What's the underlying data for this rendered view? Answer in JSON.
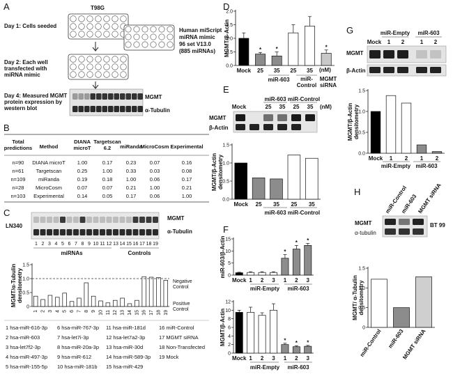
{
  "panels": {
    "A": {
      "label": "A",
      "cell_line": "T98G",
      "day1": "Day 1: Cells seeded",
      "day2": [
        "Day 2: Each well",
        "transfected with",
        "miRNA mimic"
      ],
      "day4": [
        "Day 4: Measured MGMT",
        "protein  expression by",
        "western blot"
      ],
      "library": [
        "Human miScript",
        "miRNA mimic",
        "96 set V13.0",
        "(885 miRNAs)"
      ],
      "blot_labels": [
        "MGMT",
        "α-Tubulin"
      ]
    },
    "B": {
      "label": "B",
      "headers": [
        "Total predictions",
        "Method",
        "DIANA microT",
        "Targetscan 6.2",
        "miRanda",
        "MicroCosm",
        "Experimental"
      ],
      "rows": [
        [
          "n=90",
          "DIANA microT",
          "1.00",
          "0.17",
          "0.23",
          "0.07",
          "0.16"
        ],
        [
          "n=61",
          "Targetscan",
          "0.25",
          "1.00",
          "0.33",
          "0.03",
          "0.08"
        ],
        [
          "n=109",
          "miRanda",
          "0.19",
          "0.18",
          "1.00",
          "0.06",
          "0.17"
        ],
        [
          "n=28",
          "MicroCosm",
          "0.07",
          "0.07",
          "0.21",
          "1.00",
          "0.21"
        ],
        [
          "n=103",
          "Experimental",
          "0.14",
          "0.05",
          "0.17",
          "0.06",
          "1.00"
        ]
      ]
    },
    "C": {
      "label": "C",
      "cell_line": "LN340",
      "blot_labels": [
        "MGMT",
        "α-Tubulin"
      ],
      "lane_numbers": [
        "1",
        "2",
        "3",
        "4",
        "5",
        "6",
        "7",
        "8",
        "9",
        "10",
        "11",
        "12",
        "13",
        "14",
        "15",
        "16",
        "17",
        "18",
        "19"
      ],
      "group_mirnas": "miRNAs",
      "group_controls": "Controls",
      "neg_label": "Negative Control",
      "pos_label": "Positive Control",
      "legend": [
        "1 hsa-miR-616-3p",
        "2 hsa-miR-603",
        "3 hsa-let7f2-3p",
        "4 hsa-miR-497-3p",
        "5 hsa-miR-155-5p",
        "6 hsa-miR-767-3p",
        "7 hsa-let7i-3p",
        "8 hsa-miR-20a-3p",
        "9 hsa-miR-612",
        "10 hsa-miR-181b",
        "11 hsa-miR-181d",
        "12 hsa-let7a2-3p",
        "13 hsa-miR-30d",
        "14 hsa-miR-589-3p",
        "15 hsa-miR-429",
        "16 miR-Control",
        "17 MGMT siRNA",
        "18 Non-Transfected",
        "19 Mock"
      ]
    },
    "D": {
      "label": "D",
      "mock": "Mock",
      "dose_unit": "(nM)",
      "groups": [
        "miR-603",
        "miR-Control",
        "MGMT siRNA"
      ]
    },
    "E": {
      "label": "E",
      "blot_labels": [
        "MGMT",
        "β-Actin"
      ],
      "top_labels": [
        "Mock",
        "25",
        "35",
        "25",
        "35"
      ],
      "dose_unit": "(nM)",
      "groups": [
        "miR-603",
        "miR-Control"
      ]
    },
    "F": {
      "label": "F",
      "groups": [
        "miR-Empty",
        "miR-603"
      ]
    },
    "G": {
      "label": "G",
      "blot_groups": [
        "miR-Empty",
        "miR-603"
      ],
      "blot_labels": [
        "MGMT",
        "β-Actin"
      ],
      "mock": "Mock",
      "lane_nums": [
        "1",
        "2",
        "1",
        "2"
      ],
      "groups": [
        "miR-Empty",
        "miR-603"
      ]
    },
    "H": {
      "label": "H",
      "col_labels": [
        "miR-Control",
        "miR-603",
        "MGMT siRNA"
      ],
      "blot_labels": [
        "MGMT",
        "α-tubulin"
      ],
      "cell_line": "BT 99"
    }
  },
  "chart_data": [
    {
      "id": "C",
      "type": "bar",
      "categories": [
        "1",
        "2",
        "3",
        "4",
        "5",
        "6",
        "7",
        "8",
        "9",
        "10",
        "11",
        "12",
        "13",
        "14",
        "15",
        "16",
        "17",
        "18",
        "19"
      ],
      "values": [
        0.37,
        0.25,
        0.4,
        0.33,
        0.48,
        0.18,
        0.3,
        0.85,
        0.37,
        0.2,
        0.13,
        0.22,
        0.3,
        0.1,
        0.22,
        1.07,
        1.05,
        1.04,
        0.94
      ],
      "ylabel": "MGMT/α-Tubulin densitometry",
      "ylim": [
        0,
        1.5
      ],
      "yticks": [
        0,
        0.5,
        1.0,
        1.5
      ],
      "ytick_labels": [
        "0",
        "0.5",
        "1.0",
        "1.5"
      ],
      "reference_line": 1.0
    },
    {
      "id": "D",
      "type": "bar",
      "categories": [
        "Mock",
        "25",
        "35",
        "25",
        "35",
        "MGMT siRNA"
      ],
      "values": [
        1.0,
        0.42,
        0.35,
        1.2,
        1.45,
        0.45
      ],
      "errors": [
        0.2,
        0.06,
        0.15,
        0.3,
        0.35,
        0.12
      ],
      "significant": [
        false,
        true,
        true,
        false,
        false,
        true
      ],
      "colors": [
        "#000000",
        "#8c8c8c",
        "#8c8c8c",
        "#ffffff",
        "#ffffff",
        "#c8c8c8"
      ],
      "ylabel": "MGMT/β-Actin",
      "ylim": [
        0,
        2.0
      ],
      "yticks": [
        0,
        0.5,
        1.0,
        1.5,
        2.0
      ],
      "ytick_labels": [
        "0.0",
        "0.5",
        "1.0",
        "1.5",
        "2.0"
      ]
    },
    {
      "id": "E",
      "type": "bar",
      "categories": [
        "Mock",
        "25",
        "35",
        "25",
        "35"
      ],
      "values": [
        1.0,
        0.59,
        0.56,
        1.22,
        1.13
      ],
      "colors": [
        "#000000",
        "#8c8c8c",
        "#8c8c8c",
        "#ffffff",
        "#ffffff"
      ],
      "ylabel": "MGMT/β-Actin densitometry",
      "ylim": [
        0,
        1.5
      ],
      "yticks": [
        0,
        0.5,
        1.0,
        1.5
      ],
      "ytick_labels": [
        "0.0",
        "0.5",
        "1.0",
        "1.5"
      ]
    },
    {
      "id": "F1",
      "type": "bar",
      "categories": [
        "Mock",
        "1",
        "2",
        "3",
        "1",
        "2",
        "3"
      ],
      "values": [
        1.0,
        1.1,
        1.1,
        1.1,
        7.0,
        10.8,
        12.3
      ],
      "errors": [
        0.2,
        0.3,
        0.3,
        0.3,
        1.5,
        1.5,
        0.8
      ],
      "significant": [
        false,
        false,
        false,
        false,
        true,
        true,
        true
      ],
      "colors": [
        "#000000",
        "#ffffff",
        "#ffffff",
        "#ffffff",
        "#8c8c8c",
        "#8c8c8c",
        "#8c8c8c"
      ],
      "ylabel": "miR-603/β-Actin",
      "ylim": [
        0,
        15
      ],
      "yticks": [
        0,
        5,
        10,
        15
      ],
      "ytick_labels": [
        "0",
        "5",
        "10",
        "15"
      ]
    },
    {
      "id": "F2",
      "type": "bar",
      "categories": [
        "Mock",
        "1",
        "2",
        "3",
        "1",
        "2",
        "3"
      ],
      "values": [
        9.5,
        9.5,
        8.8,
        10.0,
        2.0,
        1.5,
        1.6
      ],
      "errors": [
        0.5,
        1.2,
        0.6,
        1.5,
        0.3,
        0.2,
        0.2
      ],
      "significant": [
        false,
        false,
        false,
        false,
        true,
        true,
        true
      ],
      "colors": [
        "#000000",
        "#ffffff",
        "#ffffff",
        "#ffffff",
        "#8c8c8c",
        "#8c8c8c",
        "#8c8c8c"
      ],
      "ylabel": "MGMT/β-Actin",
      "ylim": [
        0,
        12
      ],
      "yticks": [
        0,
        2,
        4,
        6,
        8,
        10,
        12
      ],
      "ytick_labels": [
        "0",
        "2",
        "4",
        "6",
        "8",
        "10",
        "12"
      ]
    },
    {
      "id": "G",
      "type": "bar",
      "categories": [
        "Mock",
        "1",
        "2",
        "1",
        "2"
      ],
      "values": [
        1.0,
        1.38,
        1.2,
        0.2,
        0.04
      ],
      "colors": [
        "#000000",
        "#ffffff",
        "#ffffff",
        "#8c8c8c",
        "#8c8c8c"
      ],
      "ylabel": "MGMT/β-Actin densitometry",
      "ylim": [
        0,
        1.5
      ],
      "yticks": [
        0,
        0.5,
        1.0,
        1.5
      ],
      "ytick_labels": [
        "0.0",
        "0.5",
        "1.0",
        "1.5"
      ]
    },
    {
      "id": "H",
      "type": "bar",
      "categories": [
        "miR-Control",
        "miR-603",
        "MGMT siRNA"
      ],
      "values": [
        1.22,
        0.5,
        1.28
      ],
      "colors": [
        "#ffffff",
        "#8c8c8c",
        "#cfcfcf"
      ],
      "ylabel": "MGMT/ α-Tubulin densitometry",
      "ylim": [
        0,
        1.5
      ],
      "yticks": [
        0,
        0.5,
        1.0,
        1.5
      ],
      "ytick_labels": [
        "0",
        "0.5",
        "1.0",
        "1.5"
      ]
    }
  ]
}
